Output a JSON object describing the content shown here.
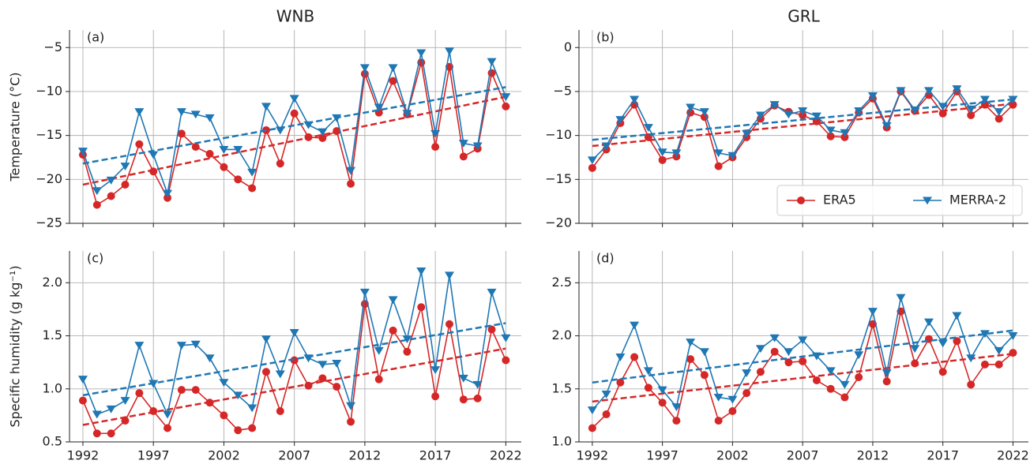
{
  "chart_data": [
    {
      "type": "line",
      "title": "WNB",
      "label": "(a)",
      "ylabel": "Temperature (°C)",
      "x": [
        1992,
        1993,
        1994,
        1995,
        1996,
        1997,
        1998,
        1999,
        2000,
        2001,
        2002,
        2003,
        2004,
        2005,
        2006,
        2007,
        2008,
        2009,
        2010,
        2011,
        2012,
        2013,
        2014,
        2015,
        2016,
        2017,
        2018,
        2019,
        2020,
        2021,
        2022
      ],
      "xlim": [
        1991.05,
        2023.1
      ],
      "xticks": [
        1992,
        1997,
        2002,
        2007,
        2012,
        2017,
        2022
      ],
      "show_xtick_labels": false,
      "ylim": [
        -25,
        -3
      ],
      "yticks": [
        {
          "value": -25,
          "label": "−25"
        },
        {
          "value": -20,
          "label": "−20"
        },
        {
          "value": -15,
          "label": "−15"
        },
        {
          "value": -10,
          "label": "−10"
        },
        {
          "value": -5,
          "label": "−5"
        }
      ],
      "grid": true,
      "series": [
        {
          "name": "ERA5",
          "color": "#d62728",
          "marker": "o",
          "values": [
            -17.2,
            -22.9,
            -21.9,
            -20.6,
            -16.0,
            -19.1,
            -22.1,
            -14.8,
            -16.3,
            -17.1,
            -18.6,
            -20.0,
            -21.0,
            -14.4,
            -18.2,
            -12.5,
            -15.2,
            -15.3,
            -14.5,
            -20.5,
            -8.0,
            -12.4,
            -8.8,
            -12.6,
            -6.7,
            -16.3,
            -7.2,
            -17.4,
            -16.5,
            -7.9,
            -11.7
          ],
          "trend": [
            -20.6,
            -10.6
          ]
        },
        {
          "name": "MERRA-2",
          "color": "#1f77b4",
          "marker": "v",
          "values": [
            -16.8,
            -21.3,
            -20.1,
            -18.5,
            -12.3,
            -17.2,
            -21.6,
            -12.3,
            -12.6,
            -13.0,
            -16.6,
            -16.6,
            -19.2,
            -11.7,
            -14.4,
            -10.8,
            -13.8,
            -14.6,
            -13.0,
            -19.0,
            -7.3,
            -11.8,
            -7.3,
            -12.5,
            -5.6,
            -14.8,
            -5.4,
            -15.9,
            -16.2,
            -6.6,
            -10.6
          ],
          "trend": [
            -18.2,
            -9.5
          ]
        }
      ]
    },
    {
      "type": "line",
      "title": "GRL",
      "label": "(b)",
      "x": [
        1992,
        1993,
        1994,
        1995,
        1996,
        1997,
        1998,
        1999,
        2000,
        2001,
        2002,
        2003,
        2004,
        2005,
        2006,
        2007,
        2008,
        2009,
        2010,
        2011,
        2012,
        2013,
        2014,
        2015,
        2016,
        2017,
        2018,
        2019,
        2020,
        2021,
        2022
      ],
      "xlim": [
        1991.05,
        2023.1
      ],
      "xticks": [
        1992,
        1997,
        2002,
        2007,
        2012,
        2017,
        2022
      ],
      "show_xtick_labels": false,
      "ylim": [
        -20,
        2
      ],
      "yticks": [
        {
          "value": -20,
          "label": "−20"
        },
        {
          "value": -15,
          "label": "−15"
        },
        {
          "value": -10,
          "label": "−10"
        },
        {
          "value": -5,
          "label": "−5"
        },
        0
      ],
      "grid": true,
      "legend": "lower right",
      "series": [
        {
          "name": "ERA5",
          "color": "#d62728",
          "marker": "o",
          "values": [
            -13.7,
            -11.6,
            -8.6,
            -6.5,
            -10.2,
            -12.8,
            -12.4,
            -7.4,
            -7.9,
            -13.5,
            -12.5,
            -10.2,
            -8.1,
            -6.6,
            -7.3,
            -7.7,
            -8.4,
            -10.1,
            -10.2,
            -7.4,
            -5.8,
            -9.1,
            -5.0,
            -7.2,
            -5.4,
            -7.5,
            -5.0,
            -7.7,
            -6.5,
            -8.1,
            -6.5
          ],
          "trend": [
            -11.2,
            -6.4
          ]
        },
        {
          "name": "MERRA-2",
          "color": "#1f77b4",
          "marker": "v",
          "values": [
            -12.8,
            -11.2,
            -8.2,
            -5.9,
            -9.1,
            -11.9,
            -12.0,
            -6.8,
            -7.3,
            -12.0,
            -12.3,
            -9.8,
            -7.7,
            -6.5,
            -7.6,
            -7.2,
            -7.8,
            -9.4,
            -9.7,
            -7.2,
            -5.5,
            -8.9,
            -4.9,
            -7.1,
            -4.9,
            -6.7,
            -4.7,
            -7.0,
            -5.9,
            -7.3,
            -5.9
          ],
          "trend": [
            -10.5,
            -5.9
          ]
        }
      ]
    },
    {
      "type": "line",
      "label": "(c)",
      "ylabel": "Specific humidity (g kg⁻¹)",
      "x": [
        1992,
        1993,
        1994,
        1995,
        1996,
        1997,
        1998,
        1999,
        2000,
        2001,
        2002,
        2003,
        2004,
        2005,
        2006,
        2007,
        2008,
        2009,
        2010,
        2011,
        2012,
        2013,
        2014,
        2015,
        2016,
        2017,
        2018,
        2019,
        2020,
        2021,
        2022
      ],
      "xlim": [
        1991.05,
        2023.1
      ],
      "xticks": [
        1992,
        1997,
        2002,
        2007,
        2012,
        2017,
        2022
      ],
      "ylim": [
        0.5,
        2.3
      ],
      "yticks": [
        0.5,
        {
          "value": 1,
          "label": "1.0"
        },
        1.5,
        {
          "value": 2,
          "label": "2.0"
        }
      ],
      "grid": true,
      "series": [
        {
          "name": "ERA5",
          "color": "#d62728",
          "marker": "o",
          "values": [
            0.89,
            0.58,
            0.58,
            0.7,
            0.96,
            0.79,
            0.63,
            0.99,
            0.99,
            0.87,
            0.75,
            0.61,
            0.63,
            1.16,
            0.79,
            1.27,
            1.03,
            1.1,
            1.02,
            0.69,
            1.8,
            1.09,
            1.55,
            1.35,
            1.77,
            0.93,
            1.61,
            0.9,
            0.91,
            1.56,
            1.27
          ],
          "trend": [
            0.66,
            1.38
          ]
        },
        {
          "name": "MERRA-2",
          "color": "#1f77b4",
          "marker": "v",
          "values": [
            1.09,
            0.76,
            0.81,
            0.89,
            1.41,
            1.05,
            0.76,
            1.41,
            1.42,
            1.29,
            1.06,
            0.94,
            0.82,
            1.47,
            1.14,
            1.53,
            1.29,
            1.23,
            1.24,
            0.84,
            1.91,
            1.36,
            1.84,
            1.47,
            2.11,
            1.18,
            2.07,
            1.1,
            1.04,
            1.91,
            1.48
          ],
          "trend": [
            0.94,
            1.62
          ]
        }
      ]
    },
    {
      "type": "line",
      "label": "(d)",
      "x": [
        1992,
        1993,
        1994,
        1995,
        1996,
        1997,
        1998,
        1999,
        2000,
        2001,
        2002,
        2003,
        2004,
        2005,
        2006,
        2007,
        2008,
        2009,
        2010,
        2011,
        2012,
        2013,
        2014,
        2015,
        2016,
        2017,
        2018,
        2019,
        2020,
        2021,
        2022
      ],
      "xlim": [
        1991.05,
        2023.1
      ],
      "xticks": [
        1992,
        1997,
        2002,
        2007,
        2012,
        2017,
        2022
      ],
      "ylim": [
        1.0,
        2.8
      ],
      "yticks": [
        {
          "value": 1,
          "label": "1.0"
        },
        1.5,
        {
          "value": 2,
          "label": "2.0"
        },
        2.5
      ],
      "grid": true,
      "series": [
        {
          "name": "ERA5",
          "color": "#d62728",
          "marker": "o",
          "values": [
            1.13,
            1.26,
            1.56,
            1.8,
            1.51,
            1.37,
            1.2,
            1.78,
            1.63,
            1.2,
            1.29,
            1.46,
            1.66,
            1.85,
            1.75,
            1.76,
            1.58,
            1.5,
            1.42,
            1.61,
            2.11,
            1.57,
            2.23,
            1.74,
            1.97,
            1.66,
            1.95,
            1.54,
            1.73,
            1.73,
            1.84
          ],
          "trend": [
            1.38,
            1.83
          ]
        },
        {
          "name": "MERRA-2",
          "color": "#1f77b4",
          "marker": "v",
          "values": [
            1.3,
            1.45,
            1.8,
            2.1,
            1.67,
            1.49,
            1.33,
            1.94,
            1.85,
            1.42,
            1.4,
            1.65,
            1.88,
            1.98,
            1.85,
            1.96,
            1.81,
            1.67,
            1.54,
            1.82,
            2.23,
            1.65,
            2.36,
            1.88,
            2.13,
            1.93,
            2.19,
            1.79,
            2.02,
            1.86,
            2.0
          ],
          "trend": [
            1.56,
            2.05
          ]
        }
      ]
    }
  ]
}
